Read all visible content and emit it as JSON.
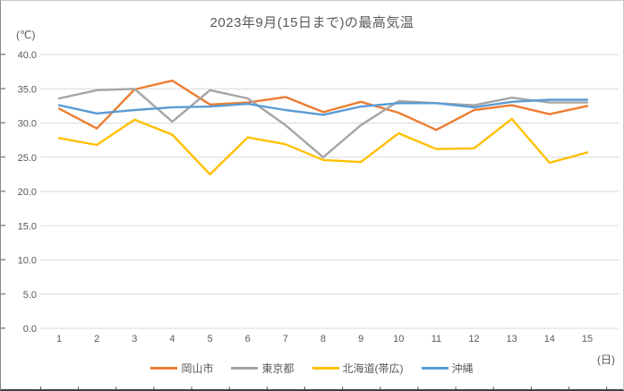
{
  "title": "2023年9月(15日まで)の最高気温",
  "y_axis": {
    "unit": "(℃)",
    "ticks": [
      "40.0",
      "35.0",
      "30.0",
      "25.0",
      "20.0",
      "15.0",
      "10.0",
      "5.0",
      "0.0"
    ]
  },
  "x_axis": {
    "unit": "(日)",
    "labels": [
      "1",
      "2",
      "3",
      "4",
      "5",
      "6",
      "7",
      "8",
      "9",
      "10",
      "11",
      "12",
      "13",
      "14",
      "15"
    ]
  },
  "legend": [
    {
      "label": "岡山市",
      "color": "#ED7D31"
    },
    {
      "label": "東京都",
      "color": "#A5A5A5"
    },
    {
      "label": "北海道(帯広)",
      "color": "#FFC000"
    },
    {
      "label": "沖縄",
      "color": "#5B9BD5"
    }
  ],
  "colors": {
    "gridline": "#D9D9D9",
    "axis_text": "#595959",
    "title_text": "#595959"
  },
  "chart_data": {
    "type": "line",
    "title": "2023年9月(15日まで)の最高気温",
    "xlabel": "(日)",
    "ylabel": "(℃)",
    "ylim": [
      0,
      40
    ],
    "ytick_step": 5,
    "grid": "horizontal",
    "legend_position": "bottom",
    "categories": [
      1,
      2,
      3,
      4,
      5,
      6,
      7,
      8,
      9,
      10,
      11,
      12,
      13,
      14,
      15
    ],
    "series": [
      {
        "name": "岡山市",
        "color": "#ED7D31",
        "values": [
          32.1,
          29.2,
          34.9,
          36.2,
          32.7,
          33.0,
          33.8,
          31.6,
          33.1,
          31.5,
          29.0,
          31.9,
          32.6,
          31.3,
          32.5
        ]
      },
      {
        "name": "東京都",
        "color": "#A5A5A5",
        "values": [
          33.6,
          34.8,
          35.0,
          30.2,
          34.8,
          33.6,
          29.7,
          25.0,
          29.7,
          33.2,
          32.9,
          32.6,
          33.7,
          33.0,
          33.0
        ]
      },
      {
        "name": "北海道(帯広)",
        "color": "#FFC000",
        "values": [
          27.8,
          26.8,
          30.5,
          28.3,
          22.5,
          27.9,
          26.9,
          24.6,
          24.3,
          28.5,
          26.2,
          26.3,
          30.6,
          24.2,
          25.7
        ]
      },
      {
        "name": "沖縄",
        "color": "#5B9BD5",
        "values": [
          32.6,
          31.4,
          31.9,
          32.3,
          32.4,
          32.8,
          31.9,
          31.2,
          32.4,
          32.9,
          32.9,
          32.3,
          33.1,
          33.4,
          33.4
        ]
      }
    ]
  }
}
